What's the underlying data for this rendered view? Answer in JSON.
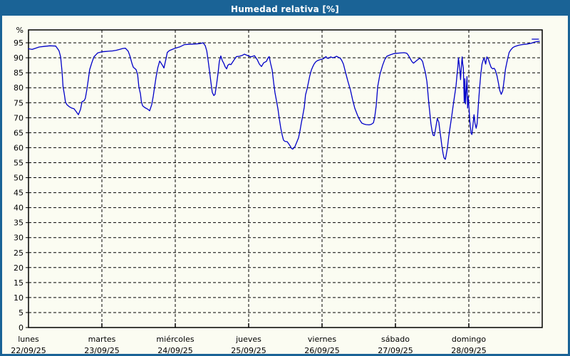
{
  "window": {
    "title": "Humedad relativa [%]"
  },
  "colors": {
    "titlebar": "#1A6396",
    "border": "#1A6396",
    "background": "#FBFCF2",
    "grid": "#000000",
    "frame": "#000000",
    "line": "#0000C8"
  },
  "chart_data": {
    "type": "line",
    "title": "Humedad relativa [%]",
    "ylabel": "%",
    "grid": "dashed",
    "legend_position": "none",
    "y_axis": {
      "min": 0,
      "max_visible": 99.3,
      "tick_step": 5,
      "ticks": [
        0,
        5,
        10,
        15,
        20,
        25,
        30,
        35,
        40,
        45,
        50,
        55,
        60,
        65,
        70,
        75,
        80,
        85,
        90,
        95
      ],
      "unit_label": "%"
    },
    "x_axis": {
      "unit": "hours since lunes 22/09/25 00:00",
      "min": 0,
      "max": 168,
      "day_span_hours": 24,
      "categories": [
        {
          "day": "lunes",
          "date": "22/09/25"
        },
        {
          "day": "martes",
          "date": "23/09/25"
        },
        {
          "day": "miércoles",
          "date": "24/09/25"
        },
        {
          "day": "jueves",
          "date": "25/09/25"
        },
        {
          "day": "viernes",
          "date": "26/09/25"
        },
        {
          "day": "sábado",
          "date": "27/09/25"
        },
        {
          "day": "domingo",
          "date": "28/09/25"
        }
      ]
    },
    "series": [
      {
        "name": "Humedad relativa",
        "color": "#0000C8",
        "points": [
          [
            0.0,
            93.0
          ],
          [
            1.2,
            92.8
          ],
          [
            2.3,
            93.2
          ],
          [
            3.5,
            93.6
          ],
          [
            5.1,
            93.8
          ],
          [
            7.0,
            94.0
          ],
          [
            8.9,
            93.9
          ],
          [
            9.6,
            92.9
          ],
          [
            10.0,
            92.3
          ],
          [
            10.5,
            90.3
          ],
          [
            11.0,
            85.1
          ],
          [
            11.3,
            80.3
          ],
          [
            11.7,
            78.0
          ],
          [
            12.1,
            75.2
          ],
          [
            12.6,
            74.3
          ],
          [
            13.3,
            73.7
          ],
          [
            14.2,
            73.2
          ],
          [
            14.9,
            73.0
          ],
          [
            15.6,
            72.0
          ],
          [
            16.3,
            71.0
          ],
          [
            17.0,
            72.8
          ],
          [
            17.5,
            75.3
          ],
          [
            18.2,
            75.7
          ],
          [
            18.6,
            76.5
          ],
          [
            19.1,
            79.5
          ],
          [
            19.6,
            83.0
          ],
          [
            20.0,
            86.0
          ],
          [
            20.7,
            88.3
          ],
          [
            21.4,
            90.3
          ],
          [
            22.6,
            91.6
          ],
          [
            24.0,
            92.0
          ],
          [
            25.2,
            92.1
          ],
          [
            26.3,
            92.2
          ],
          [
            27.5,
            92.3
          ],
          [
            28.7,
            92.5
          ],
          [
            29.8,
            92.8
          ],
          [
            30.8,
            93.1
          ],
          [
            31.7,
            93.2
          ],
          [
            32.6,
            92.2
          ],
          [
            33.1,
            90.8
          ],
          [
            33.6,
            89.0
          ],
          [
            33.9,
            87.9
          ],
          [
            34.3,
            86.8
          ],
          [
            34.7,
            86.5
          ],
          [
            35.2,
            86.0
          ],
          [
            35.7,
            84.3
          ],
          [
            36.1,
            80.3
          ],
          [
            36.6,
            78.0
          ],
          [
            36.9,
            75.4
          ],
          [
            37.3,
            74.0
          ],
          [
            38.0,
            73.4
          ],
          [
            38.7,
            73.0
          ],
          [
            39.1,
            72.8
          ],
          [
            39.6,
            72.3
          ],
          [
            40.3,
            74.4
          ],
          [
            40.8,
            77.2
          ],
          [
            41.2,
            80.0
          ],
          [
            41.7,
            83.5
          ],
          [
            42.3,
            86.7
          ],
          [
            42.9,
            88.9
          ],
          [
            43.3,
            88.3
          ],
          [
            43.8,
            87.5
          ],
          [
            44.3,
            86.6
          ],
          [
            45.0,
            89.8
          ],
          [
            45.4,
            91.8
          ],
          [
            46.1,
            92.4
          ],
          [
            47.3,
            92.9
          ],
          [
            48.0,
            93.2
          ],
          [
            49.6,
            93.7
          ],
          [
            51.0,
            94.4
          ],
          [
            52.7,
            94.5
          ],
          [
            54.3,
            94.6
          ],
          [
            55.9,
            94.7
          ],
          [
            57.1,
            95.0
          ],
          [
            57.8,
            94.0
          ],
          [
            58.3,
            92.3
          ],
          [
            58.7,
            89.5
          ],
          [
            59.2,
            85.5
          ],
          [
            59.7,
            81.5
          ],
          [
            60.1,
            78.5
          ],
          [
            60.6,
            77.4
          ],
          [
            61.0,
            77.8
          ],
          [
            61.5,
            81.0
          ],
          [
            62.0,
            85.0
          ],
          [
            62.4,
            88.7
          ],
          [
            62.9,
            90.6
          ],
          [
            63.4,
            89.0
          ],
          [
            63.8,
            88.3
          ],
          [
            64.3,
            87.0
          ],
          [
            64.8,
            86.3
          ],
          [
            65.2,
            87.5
          ],
          [
            65.7,
            87.9
          ],
          [
            66.2,
            87.7
          ],
          [
            66.6,
            88.3
          ],
          [
            67.3,
            89.4
          ],
          [
            68.0,
            90.4
          ],
          [
            69.0,
            90.5
          ],
          [
            69.9,
            90.8
          ],
          [
            70.6,
            91.2
          ],
          [
            71.3,
            90.9
          ],
          [
            72.0,
            90.6
          ],
          [
            72.7,
            90.3
          ],
          [
            73.4,
            90.5
          ],
          [
            73.9,
            90.7
          ],
          [
            74.8,
            89.4
          ],
          [
            75.5,
            87.9
          ],
          [
            76.2,
            87.1
          ],
          [
            76.9,
            88.3
          ],
          [
            77.8,
            88.8
          ],
          [
            78.3,
            89.9
          ],
          [
            78.7,
            90.4
          ],
          [
            79.2,
            88.0
          ],
          [
            79.7,
            85.9
          ],
          [
            80.2,
            81.5
          ],
          [
            80.6,
            78.4
          ],
          [
            81.1,
            75.6
          ],
          [
            81.6,
            72.8
          ],
          [
            82.0,
            69.8
          ],
          [
            82.5,
            66.5
          ],
          [
            83.0,
            64.1
          ],
          [
            83.4,
            62.5
          ],
          [
            83.9,
            62.1
          ],
          [
            84.6,
            62.0
          ],
          [
            85.3,
            61.0
          ],
          [
            86.0,
            59.8
          ],
          [
            86.4,
            59.5
          ],
          [
            87.1,
            60.3
          ],
          [
            87.8,
            62.0
          ],
          [
            88.3,
            63.3
          ],
          [
            88.8,
            65.7
          ],
          [
            89.2,
            68.1
          ],
          [
            89.7,
            70.8
          ],
          [
            90.2,
            73.6
          ],
          [
            90.6,
            77.6
          ],
          [
            91.1,
            79.6
          ],
          [
            91.6,
            82.0
          ],
          [
            92.0,
            84.0
          ],
          [
            92.5,
            85.9
          ],
          [
            93.0,
            87.1
          ],
          [
            93.4,
            87.9
          ],
          [
            93.9,
            88.6
          ],
          [
            94.4,
            89.0
          ],
          [
            95.1,
            89.3
          ],
          [
            95.8,
            89.5
          ],
          [
            96.5,
            89.7
          ],
          [
            96.9,
            90.1
          ],
          [
            97.3,
            90.4
          ],
          [
            97.6,
            89.9
          ],
          [
            98.1,
            89.8
          ],
          [
            98.8,
            90.3
          ],
          [
            99.5,
            90.0
          ],
          [
            100.2,
            90.2
          ],
          [
            100.7,
            90.5
          ],
          [
            101.3,
            90.2
          ],
          [
            102.0,
            89.8
          ],
          [
            102.5,
            89.0
          ],
          [
            103.0,
            87.9
          ],
          [
            103.7,
            85.1
          ],
          [
            104.4,
            82.3
          ],
          [
            105.3,
            79.2
          ],
          [
            106.0,
            76.0
          ],
          [
            106.7,
            73.2
          ],
          [
            107.6,
            70.8
          ],
          [
            108.3,
            69.3
          ],
          [
            109.0,
            68.2
          ],
          [
            109.7,
            67.9
          ],
          [
            110.4,
            67.7
          ],
          [
            111.4,
            67.6
          ],
          [
            112.1,
            67.8
          ],
          [
            112.8,
            68.3
          ],
          [
            113.2,
            70.0
          ],
          [
            113.7,
            74.0
          ],
          [
            114.2,
            80.4
          ],
          [
            114.9,
            84.3
          ],
          [
            115.8,
            87.5
          ],
          [
            116.5,
            89.4
          ],
          [
            117.2,
            90.5
          ],
          [
            118.4,
            91.0
          ],
          [
            119.5,
            91.4
          ],
          [
            120.5,
            91.5
          ],
          [
            121.6,
            91.6
          ],
          [
            122.8,
            91.7
          ],
          [
            123.7,
            91.5
          ],
          [
            124.2,
            90.9
          ],
          [
            124.9,
            89.6
          ],
          [
            125.4,
            88.7
          ],
          [
            125.9,
            88.2
          ],
          [
            126.5,
            88.7
          ],
          [
            127.2,
            89.3
          ],
          [
            127.9,
            89.8
          ],
          [
            128.4,
            89.5
          ],
          [
            128.9,
            88.7
          ],
          [
            129.3,
            87.0
          ],
          [
            129.8,
            85.0
          ],
          [
            130.3,
            82.0
          ],
          [
            130.6,
            78.5
          ],
          [
            130.9,
            75.0
          ],
          [
            131.3,
            71.0
          ],
          [
            131.6,
            68.0
          ],
          [
            132.0,
            65.5
          ],
          [
            132.3,
            64.2
          ],
          [
            132.7,
            64.0
          ],
          [
            133.0,
            65.5
          ],
          [
            133.4,
            68.0
          ],
          [
            133.7,
            69.8
          ],
          [
            134.2,
            68.5
          ],
          [
            134.5,
            66.0
          ],
          [
            134.9,
            63.0
          ],
          [
            135.2,
            60.5
          ],
          [
            135.6,
            58.0
          ],
          [
            135.9,
            56.6
          ],
          [
            136.3,
            56.1
          ],
          [
            136.6,
            57.5
          ],
          [
            137.0,
            60.0
          ],
          [
            137.4,
            63.5
          ],
          [
            137.9,
            67.0
          ],
          [
            138.4,
            70.5
          ],
          [
            138.8,
            73.5
          ],
          [
            139.3,
            77.0
          ],
          [
            139.8,
            80.5
          ],
          [
            140.1,
            84.0
          ],
          [
            140.4,
            87.0
          ],
          [
            140.6,
            90.0
          ],
          [
            140.8,
            88.3
          ],
          [
            141.1,
            85.5
          ],
          [
            141.3,
            82.7
          ],
          [
            141.5,
            86.0
          ],
          [
            141.8,
            90.3
          ],
          [
            142.0,
            88.0
          ],
          [
            142.2,
            86.6
          ],
          [
            142.5,
            75.1
          ],
          [
            142.7,
            83.0
          ],
          [
            142.9,
            74.6
          ],
          [
            143.2,
            80.0
          ],
          [
            143.4,
            83.7
          ],
          [
            143.6,
            73.2
          ],
          [
            143.8,
            77.0
          ],
          [
            144.1,
            73.0
          ],
          [
            144.3,
            69.0
          ],
          [
            144.7,
            65.0
          ],
          [
            145.0,
            64.4
          ],
          [
            145.4,
            68.0
          ],
          [
            145.7,
            71.0
          ],
          [
            146.0,
            68.3
          ],
          [
            146.4,
            66.5
          ],
          [
            146.7,
            68.0
          ],
          [
            147.1,
            74.0
          ],
          [
            147.5,
            79.6
          ],
          [
            147.9,
            84.3
          ],
          [
            148.3,
            87.9
          ],
          [
            148.7,
            89.3
          ],
          [
            149.0,
            89.9
          ],
          [
            149.5,
            87.9
          ],
          [
            149.9,
            90.3
          ],
          [
            150.4,
            89.5
          ],
          [
            150.9,
            87.9
          ],
          [
            151.3,
            86.8
          ],
          [
            151.8,
            86.3
          ],
          [
            152.3,
            86.5
          ],
          [
            152.7,
            85.8
          ],
          [
            153.2,
            84.0
          ],
          [
            153.7,
            81.5
          ],
          [
            154.1,
            79.2
          ],
          [
            154.6,
            77.8
          ],
          [
            155.1,
            79.0
          ],
          [
            155.6,
            83.0
          ],
          [
            156.0,
            86.3
          ],
          [
            156.5,
            88.7
          ],
          [
            156.9,
            90.6
          ],
          [
            157.2,
            91.8
          ],
          [
            157.7,
            92.6
          ],
          [
            158.4,
            93.4
          ],
          [
            159.1,
            93.8
          ],
          [
            160.3,
            94.2
          ],
          [
            161.5,
            94.4
          ],
          [
            163.1,
            94.6
          ],
          [
            164.3,
            94.8
          ],
          [
            165.4,
            95.2
          ],
          [
            166.4,
            95.4
          ],
          [
            167.1,
            95.5
          ]
        ]
      }
    ],
    "extra_segments": [
      {
        "name": "trailing-dash",
        "color": "#0000C8",
        "points": [
          [
            164.7,
            96.2
          ],
          [
            166.8,
            96.2
          ]
        ]
      }
    ]
  }
}
